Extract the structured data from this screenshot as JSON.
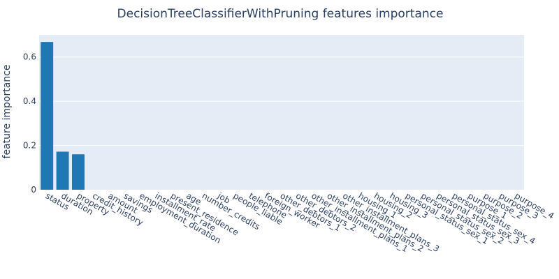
{
  "chart_data": {
    "type": "bar",
    "title": "DecisionTreeClassifierWithPruning features importance",
    "xlabel": "",
    "ylabel": "feature importance",
    "ylim": [
      0,
      0.7
    ],
    "yticks": [
      0,
      0.2,
      0.4,
      0.6
    ],
    "ytick_labels": [
      "0",
      "0.2",
      "0.4",
      "0.6"
    ],
    "grid": true,
    "colors": {
      "bar": "#1f77b4",
      "plot_bg": "#e5ecf6",
      "grid": "#ffffff",
      "text": "#2a3f5f"
    },
    "categories": [
      "status",
      "duration",
      "property",
      "credit_history",
      "amount",
      "savings",
      "employment_duration",
      "installment_rate",
      "present_residence",
      "age",
      "number_credits",
      "job",
      "people_liable",
      "telephone",
      "foreign_worker",
      "other_debtors_1",
      "other_debtors_2",
      "other_installment_plans_1",
      "other_installment_plans_2",
      "other_installment_plans_3",
      "housing_1",
      "housing_2",
      "housing_3",
      "personal_status_sex_1",
      "personal_status_sex_2",
      "personal_status_sex_3",
      "personal_status_sex_4",
      "purpose_1",
      "purpose_2",
      "purpose_3",
      "purpose_4"
    ],
    "values": [
      0.668,
      0.172,
      0.16,
      0,
      0,
      0,
      0,
      0,
      0,
      0,
      0,
      0,
      0,
      0,
      0,
      0,
      0,
      0,
      0,
      0,
      0,
      0,
      0,
      0,
      0,
      0,
      0,
      0,
      0,
      0,
      0
    ]
  }
}
